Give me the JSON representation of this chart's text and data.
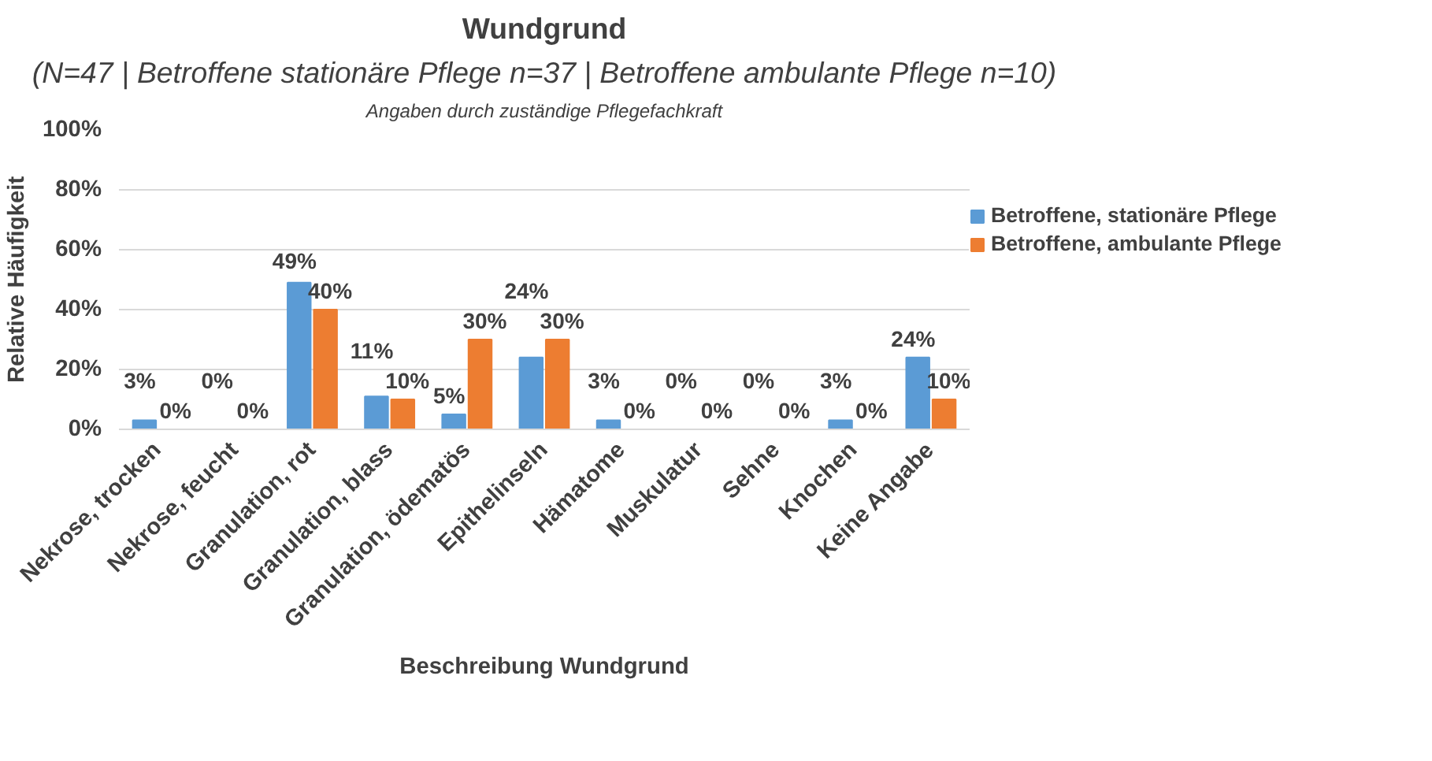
{
  "chart_data": {
    "type": "bar",
    "title": "Wundgrund",
    "subtitle": "(N=47 | Betroffene stationäre Pflege n=37 | Betroffene ambulante Pflege n=10)",
    "annotations": [
      "Angaben durch zuständige Pflegefachkraft"
    ],
    "xlabel": "Beschreibung Wundgrund",
    "ylabel": "Relative Häufigkeit",
    "categories": [
      "Nekrose, trocken",
      "Nekrose, feucht",
      "Granulation, rot",
      "Granulation, blass",
      "Granulation, ödematös",
      "Epithelinseln",
      "Hämatome",
      "Muskulatur",
      "Sehne",
      "Knochen",
      "Keine Angabe"
    ],
    "series": [
      {
        "name": "Betroffene, stationäre Pflege",
        "color": "#5b9bd5",
        "values": [
          3,
          0,
          49,
          11,
          5,
          24,
          3,
          0,
          0,
          3,
          24
        ],
        "value_labels": [
          "3%",
          "0%",
          "49%",
          "11%",
          "5%",
          "24%",
          "3%",
          "0%",
          "0%",
          "3%",
          "24%"
        ]
      },
      {
        "name": "Betroffene, ambulante Pflege",
        "color": "#ed7d31",
        "values": [
          0,
          0,
          40,
          10,
          30,
          30,
          0,
          0,
          0,
          0,
          10
        ],
        "value_labels": [
          "0%",
          "0%",
          "40%",
          "10%",
          "30%",
          "30%",
          "0%",
          "0%",
          "0%",
          "0%",
          "10%"
        ]
      }
    ],
    "ylim": [
      0,
      100
    ],
    "yticks": [
      {
        "value": 0,
        "label": "0%"
      },
      {
        "value": 20,
        "label": "20%"
      },
      {
        "value": 40,
        "label": "40%"
      },
      {
        "value": 60,
        "label": "60%"
      },
      {
        "value": 80,
        "label": "80%"
      },
      {
        "value": 100,
        "label": "100%"
      }
    ],
    "grid": "y",
    "legend": "right"
  }
}
